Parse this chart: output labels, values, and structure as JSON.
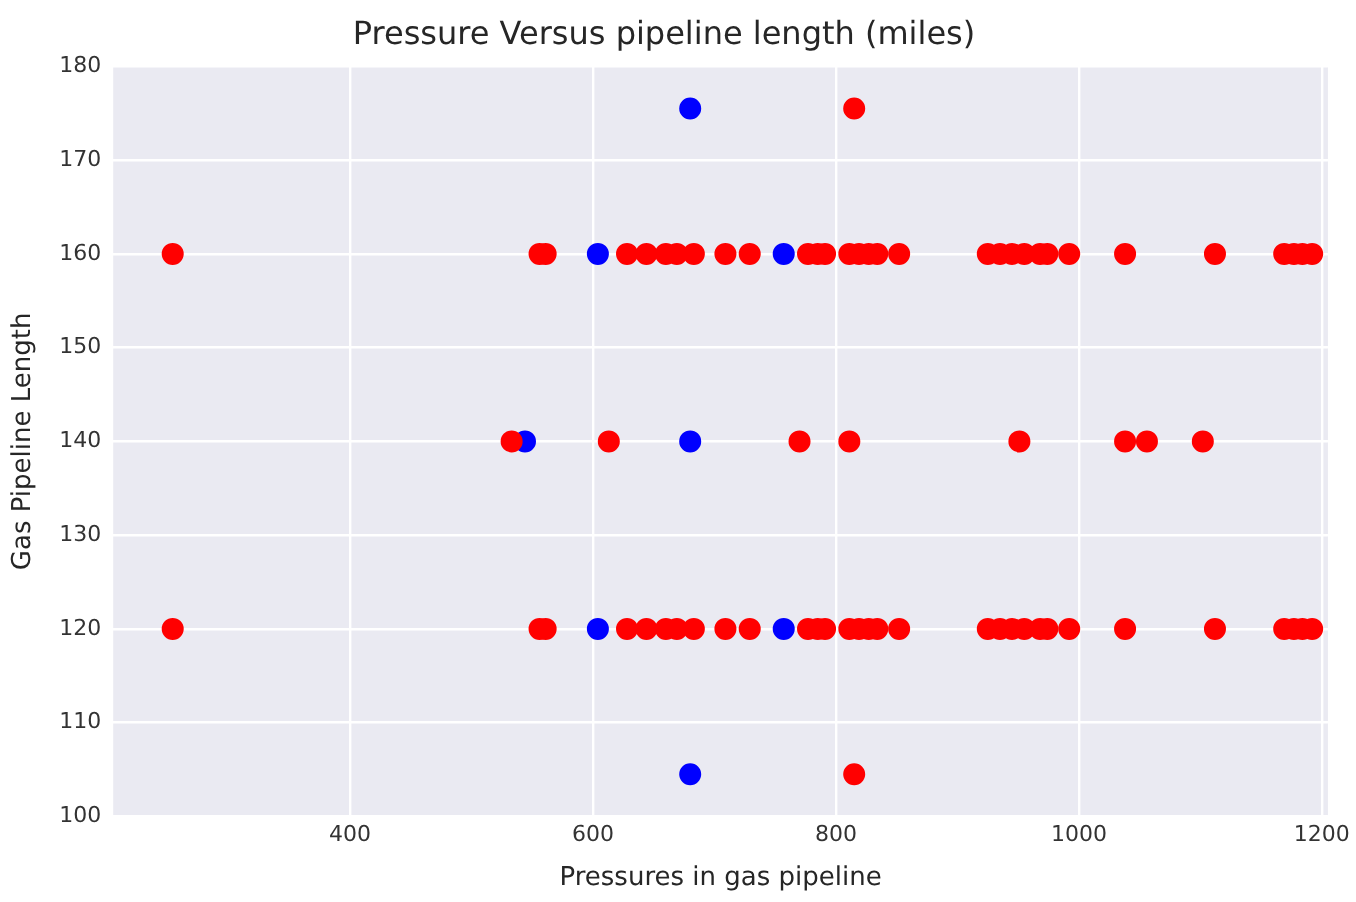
{
  "chart_data": {
    "type": "scatter",
    "title": "Pressure Versus pipeline length (miles)",
    "xlabel": "Pressures in gas pipeline",
    "ylabel": "Gas Pipeline Length",
    "xlim": [
      205,
      1205
    ],
    "xticks": [
      400,
      600,
      800,
      1000,
      1200
    ],
    "ylim": [
      100,
      180
    ],
    "yticks": [
      100,
      110,
      120,
      130,
      140,
      150,
      160,
      170,
      180
    ],
    "grid": true,
    "legend": false,
    "marker": "circle",
    "series": [
      {
        "color": "#ff0000",
        "x": [
          254,
          556,
          561,
          628,
          644,
          660,
          669,
          683,
          709,
          729,
          777,
          785,
          791,
          811,
          819,
          827,
          834,
          852,
          925,
          935,
          945,
          955,
          968,
          974,
          992,
          1038,
          1112,
          1169,
          1177,
          1184,
          1192,
          254,
          556,
          561,
          628,
          644,
          660,
          669,
          683,
          709,
          729,
          777,
          785,
          791,
          811,
          819,
          827,
          834,
          852,
          925,
          935,
          945,
          955,
          968,
          974,
          992,
          1038,
          1112,
          1169,
          1177,
          1184,
          1192,
          533,
          613,
          770,
          811,
          951,
          1038,
          1056,
          1102,
          815,
          815
        ],
        "values": [
          160,
          160,
          160,
          160,
          160,
          160,
          160,
          160,
          160,
          160,
          160,
          160,
          160,
          160,
          160,
          160,
          160,
          160,
          160,
          160,
          160,
          160,
          160,
          160,
          160,
          160,
          160,
          160,
          160,
          160,
          160,
          120,
          120,
          120,
          120,
          120,
          120,
          120,
          120,
          120,
          120,
          120,
          120,
          120,
          120,
          120,
          120,
          120,
          120,
          120,
          120,
          120,
          120,
          120,
          120,
          120,
          120,
          120,
          120,
          120,
          120,
          120,
          140,
          140,
          140,
          140,
          140,
          140,
          140,
          140,
          175.5,
          104.5
        ]
      },
      {
        "color": "#0000ff",
        "x": [
          604,
          757,
          604,
          757,
          544,
          680,
          680,
          680
        ],
        "values": [
          160,
          160,
          120,
          120,
          140,
          140,
          175.5,
          104.5
        ]
      }
    ]
  }
}
